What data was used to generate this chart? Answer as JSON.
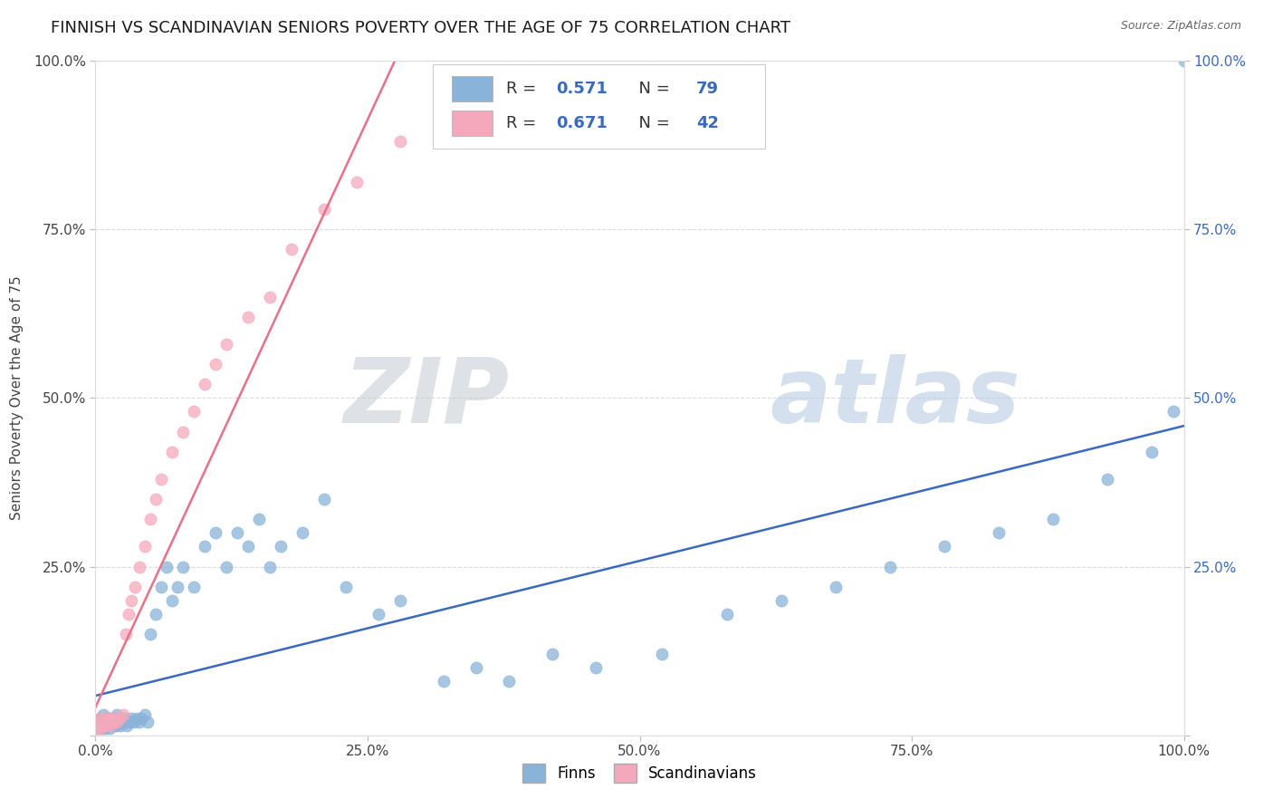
{
  "title": "FINNISH VS SCANDINAVIAN SENIORS POVERTY OVER THE AGE OF 75 CORRELATION CHART",
  "source": "Source: ZipAtlas.com",
  "ylabel": "Seniors Poverty Over the Age of 75",
  "watermark": "ZIPatlas",
  "finns_R": 0.571,
  "finns_N": 79,
  "scandinavians_R": 0.671,
  "scandinavians_N": 42,
  "finns_color": "#89b3d9",
  "scandinavians_color": "#f5a8bc",
  "finns_line_color": "#3a6abf",
  "scandinavians_line_color": "#e8708a",
  "background_color": "#ffffff",
  "grid_color": "#cccccc",
  "title_fontsize": 13,
  "axis_label_fontsize": 11,
  "tick_fontsize": 11,
  "legend_fontsize": 13,
  "right_tick_color": "#3a6abf",
  "xlim": [
    0,
    1.0
  ],
  "ylim": [
    0,
    1.0
  ],
  "xticks": [
    0,
    0.25,
    0.5,
    0.75,
    1.0
  ],
  "yticks": [
    0,
    0.25,
    0.5,
    0.75,
    1.0
  ],
  "xticklabels": [
    "0.0%",
    "25.0%",
    "50.0%",
    "75.0%",
    "100.0%"
  ],
  "left_yticklabels": [
    "",
    "25.0%",
    "50.0%",
    "75.0%",
    "100.0%"
  ],
  "right_yticklabels": [
    "",
    "25.0%",
    "50.0%",
    "75.0%",
    "100.0%"
  ],
  "finns_x": [
    0.001,
    0.002,
    0.003,
    0.004,
    0.005,
    0.005,
    0.006,
    0.007,
    0.007,
    0.008,
    0.009,
    0.009,
    0.01,
    0.01,
    0.011,
    0.012,
    0.012,
    0.013,
    0.013,
    0.014,
    0.015,
    0.015,
    0.016,
    0.017,
    0.018,
    0.019,
    0.02,
    0.02,
    0.022,
    0.023,
    0.025,
    0.027,
    0.029,
    0.031,
    0.033,
    0.035,
    0.038,
    0.04,
    0.042,
    0.045,
    0.048,
    0.05,
    0.055,
    0.06,
    0.065,
    0.07,
    0.075,
    0.08,
    0.09,
    0.1,
    0.11,
    0.12,
    0.13,
    0.14,
    0.15,
    0.16,
    0.17,
    0.19,
    0.21,
    0.23,
    0.26,
    0.28,
    0.32,
    0.35,
    0.38,
    0.42,
    0.46,
    0.52,
    0.58,
    0.63,
    0.68,
    0.73,
    0.78,
    0.83,
    0.88,
    0.93,
    0.97,
    0.99,
    1.0
  ],
  "finns_y": [
    0.01,
    0.015,
    0.02,
    0.01,
    0.015,
    0.025,
    0.01,
    0.02,
    0.03,
    0.015,
    0.02,
    0.01,
    0.025,
    0.015,
    0.02,
    0.015,
    0.025,
    0.02,
    0.01,
    0.015,
    0.02,
    0.025,
    0.015,
    0.02,
    0.025,
    0.015,
    0.02,
    0.03,
    0.02,
    0.015,
    0.02,
    0.025,
    0.015,
    0.02,
    0.025,
    0.02,
    0.025,
    0.02,
    0.025,
    0.03,
    0.02,
    0.15,
    0.18,
    0.22,
    0.25,
    0.2,
    0.22,
    0.25,
    0.22,
    0.28,
    0.3,
    0.25,
    0.3,
    0.28,
    0.32,
    0.25,
    0.28,
    0.3,
    0.35,
    0.22,
    0.18,
    0.2,
    0.08,
    0.1,
    0.08,
    0.12,
    0.1,
    0.12,
    0.18,
    0.2,
    0.22,
    0.25,
    0.28,
    0.3,
    0.32,
    0.38,
    0.42,
    0.48,
    1.0
  ],
  "scandinavians_x": [
    0.001,
    0.002,
    0.003,
    0.004,
    0.005,
    0.006,
    0.007,
    0.008,
    0.009,
    0.01,
    0.011,
    0.012,
    0.013,
    0.014,
    0.015,
    0.016,
    0.018,
    0.02,
    0.022,
    0.025,
    0.028,
    0.03,
    0.033,
    0.036,
    0.04,
    0.045,
    0.05,
    0.055,
    0.06,
    0.07,
    0.08,
    0.09,
    0.1,
    0.11,
    0.12,
    0.14,
    0.16,
    0.18,
    0.21,
    0.24,
    0.28,
    0.32
  ],
  "scandinavians_y": [
    0.01,
    0.02,
    0.015,
    0.025,
    0.01,
    0.02,
    0.015,
    0.025,
    0.02,
    0.015,
    0.02,
    0.025,
    0.02,
    0.015,
    0.025,
    0.02,
    0.025,
    0.02,
    0.025,
    0.03,
    0.15,
    0.18,
    0.2,
    0.22,
    0.25,
    0.28,
    0.32,
    0.35,
    0.38,
    0.42,
    0.45,
    0.48,
    0.52,
    0.55,
    0.58,
    0.62,
    0.65,
    0.72,
    0.78,
    0.82,
    0.88,
    0.95
  ]
}
